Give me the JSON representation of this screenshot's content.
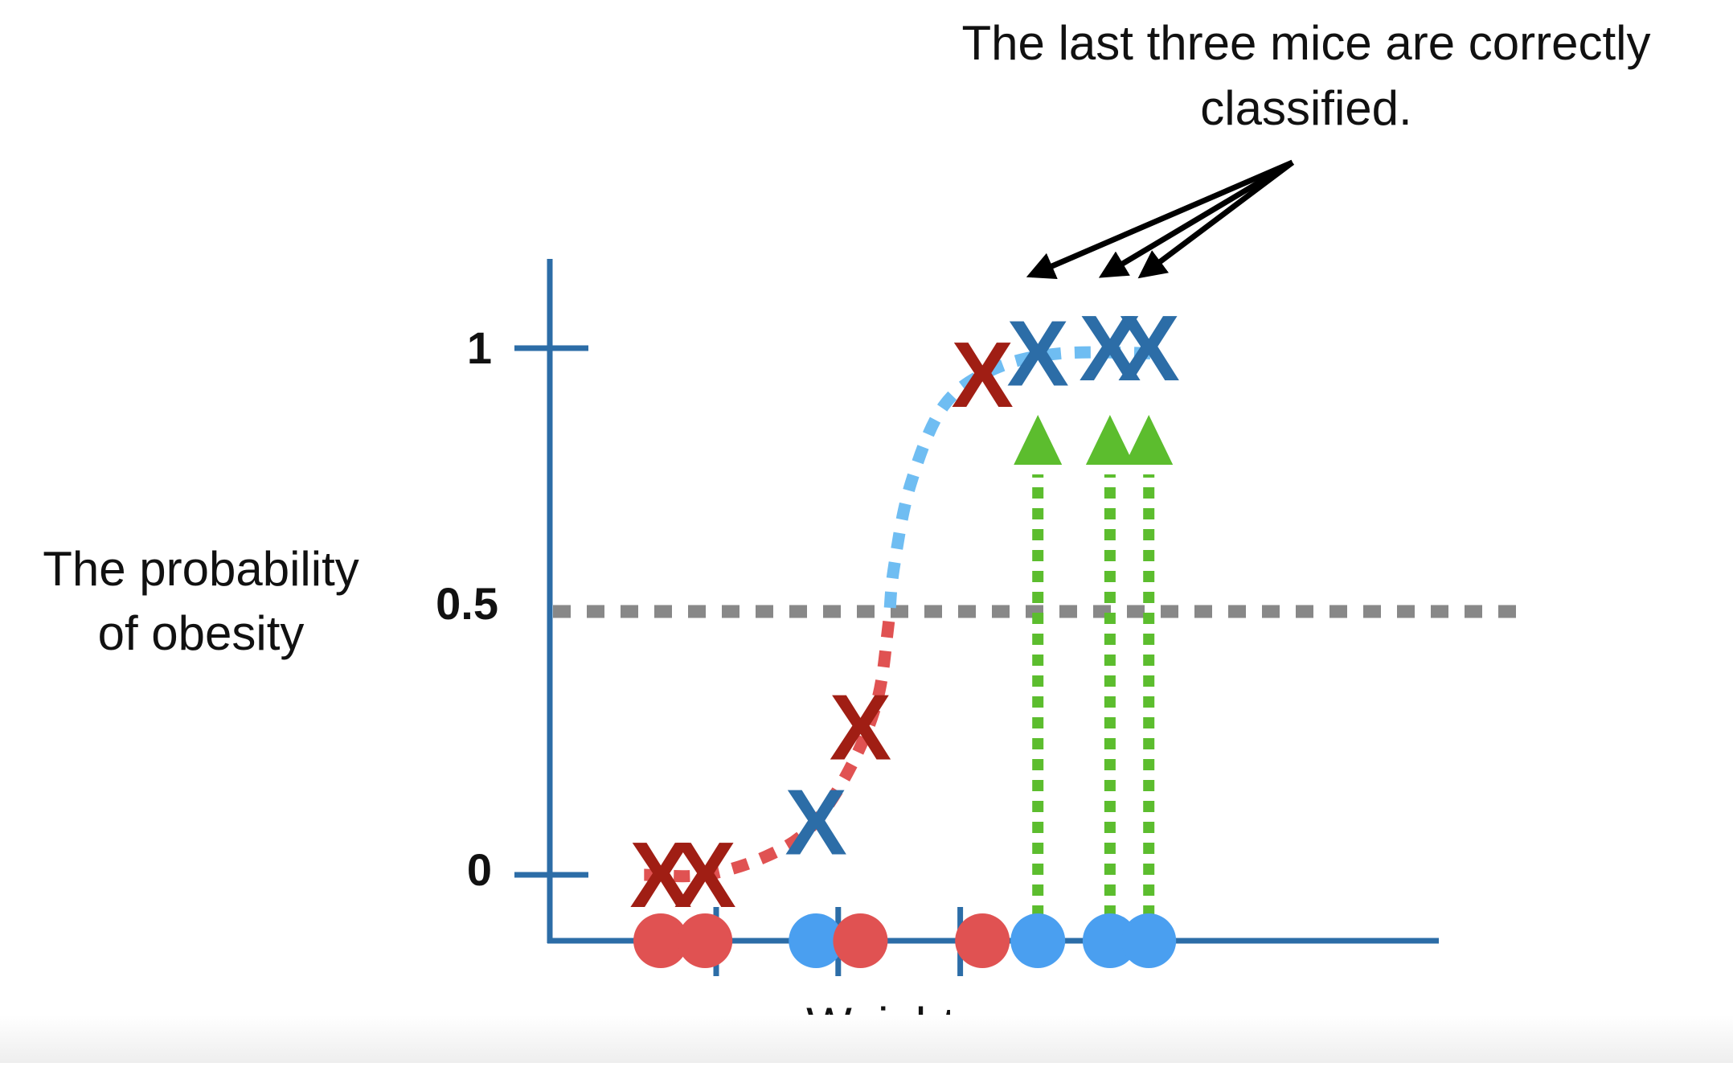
{
  "annotation": {
    "line1": "The last three mice are correctly",
    "line2": "classified."
  },
  "y_axis": {
    "label_line1": "The probability",
    "label_line2": "of obesity",
    "ticks": [
      {
        "key": "1",
        "label": "1"
      },
      {
        "key": "0.5",
        "label": "0.5"
      },
      {
        "key": "0",
        "label": "0"
      }
    ]
  },
  "x_axis": {
    "label": "Weight"
  },
  "marker_symbol": "X",
  "colors": {
    "axis": "#2c6da7",
    "obese": "#4a9ff0",
    "not_obese": "#e05252",
    "x_obese": "#2c6da7",
    "x_not_obese": "#a01e14",
    "curve_low": "#e05252",
    "curve_high": "#6fbdf2",
    "threshold": "#888888",
    "projection": "#5cbd2e",
    "pointer": "#000000"
  },
  "mice": [
    {
      "weight": 1.0,
      "probability": 0.0,
      "class": "not_obese",
      "highlighted": false
    },
    {
      "weight": 1.4,
      "probability": 0.0,
      "class": "not_obese",
      "highlighted": false
    },
    {
      "weight": 2.4,
      "probability": 0.1,
      "class": "obese",
      "highlighted": false
    },
    {
      "weight": 2.8,
      "probability": 0.28,
      "class": "not_obese",
      "highlighted": false
    },
    {
      "weight": 3.9,
      "probability": 0.95,
      "class": "not_obese",
      "highlighted": false
    },
    {
      "weight": 4.4,
      "probability": 0.99,
      "class": "obese",
      "highlighted": true
    },
    {
      "weight": 5.05,
      "probability": 1.0,
      "class": "obese",
      "highlighted": true
    },
    {
      "weight": 5.4,
      "probability": 1.0,
      "class": "obese",
      "highlighted": true
    }
  ],
  "cut_marks": [
    1.5,
    2.6,
    3.7
  ],
  "curve": [
    {
      "weight": 0.85,
      "probability": 0.0
    },
    {
      "weight": 1.4,
      "probability": 0.0
    },
    {
      "weight": 1.95,
      "probability": 0.035
    },
    {
      "weight": 2.35,
      "probability": 0.09
    },
    {
      "weight": 2.7,
      "probability": 0.2
    },
    {
      "weight": 2.95,
      "probability": 0.33
    },
    {
      "weight": 3.05,
      "probability": 0.47
    },
    {
      "weight": 3.1,
      "probability": 0.58
    },
    {
      "weight": 3.25,
      "probability": 0.74
    },
    {
      "weight": 3.55,
      "probability": 0.89
    },
    {
      "weight": 4.0,
      "probability": 0.96
    },
    {
      "weight": 4.6,
      "probability": 0.99
    },
    {
      "weight": 5.5,
      "probability": 0.99
    }
  ],
  "axis_range": {
    "weight": [
      0,
      5.6
    ],
    "probability": [
      0,
      1
    ]
  },
  "threshold": 0.5
}
